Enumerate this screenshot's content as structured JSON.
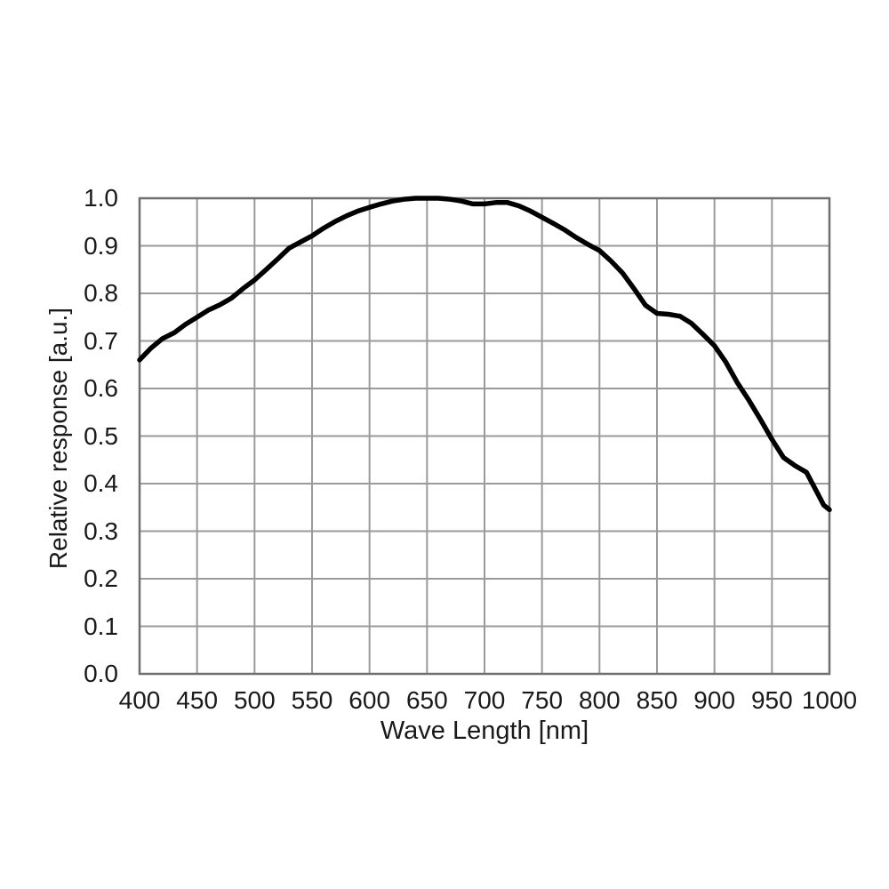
{
  "chart_data": {
    "type": "line",
    "title": "",
    "xlabel": "Wave Length [nm]",
    "ylabel": "Relative response [a.u.]",
    "xlim": [
      400,
      1000
    ],
    "ylim": [
      0.0,
      1.0
    ],
    "x_tick_labels": [
      "400",
      "450",
      "500",
      "550",
      "600",
      "650",
      "700",
      "750",
      "800",
      "850",
      "900",
      "950",
      "1000"
    ],
    "y_tick_labels": [
      "0.0",
      "0.1",
      "0.2",
      "0.3",
      "0.4",
      "0.5",
      "0.6",
      "0.7",
      "0.8",
      "0.9",
      "1.0"
    ],
    "grid": true,
    "legend": false,
    "series": [
      {
        "name": "relative-response",
        "color": "#000000",
        "x": [
          400,
          410,
          420,
          430,
          440,
          450,
          460,
          470,
          480,
          490,
          500,
          510,
          520,
          530,
          540,
          550,
          560,
          570,
          580,
          590,
          600,
          610,
          620,
          630,
          640,
          650,
          660,
          670,
          680,
          690,
          700,
          710,
          720,
          730,
          740,
          750,
          760,
          770,
          780,
          790,
          800,
          810,
          820,
          830,
          840,
          850,
          860,
          870,
          880,
          890,
          900,
          910,
          920,
          930,
          940,
          950,
          960,
          970,
          980,
          990,
          995,
          1000
        ],
        "y": [
          0.66,
          0.685,
          0.705,
          0.717,
          0.735,
          0.75,
          0.765,
          0.776,
          0.79,
          0.81,
          0.828,
          0.85,
          0.872,
          0.895,
          0.908,
          0.921,
          0.937,
          0.951,
          0.963,
          0.973,
          0.981,
          0.988,
          0.994,
          0.998,
          1.0,
          1.0,
          1.0,
          0.998,
          0.994,
          0.988,
          0.988,
          0.991,
          0.991,
          0.984,
          0.973,
          0.96,
          0.947,
          0.933,
          0.917,
          0.903,
          0.89,
          0.868,
          0.843,
          0.81,
          0.775,
          0.758,
          0.756,
          0.752,
          0.737,
          0.714,
          0.69,
          0.655,
          0.612,
          0.575,
          0.535,
          0.493,
          0.455,
          0.438,
          0.424,
          0.378,
          0.355,
          0.345
        ]
      }
    ]
  },
  "styles": {
    "grid_color": "#9a9a9a",
    "border_color": "#6f6f6f",
    "curve_color": "#000000",
    "text_color": "#1a1a1a",
    "background": "#ffffff"
  }
}
